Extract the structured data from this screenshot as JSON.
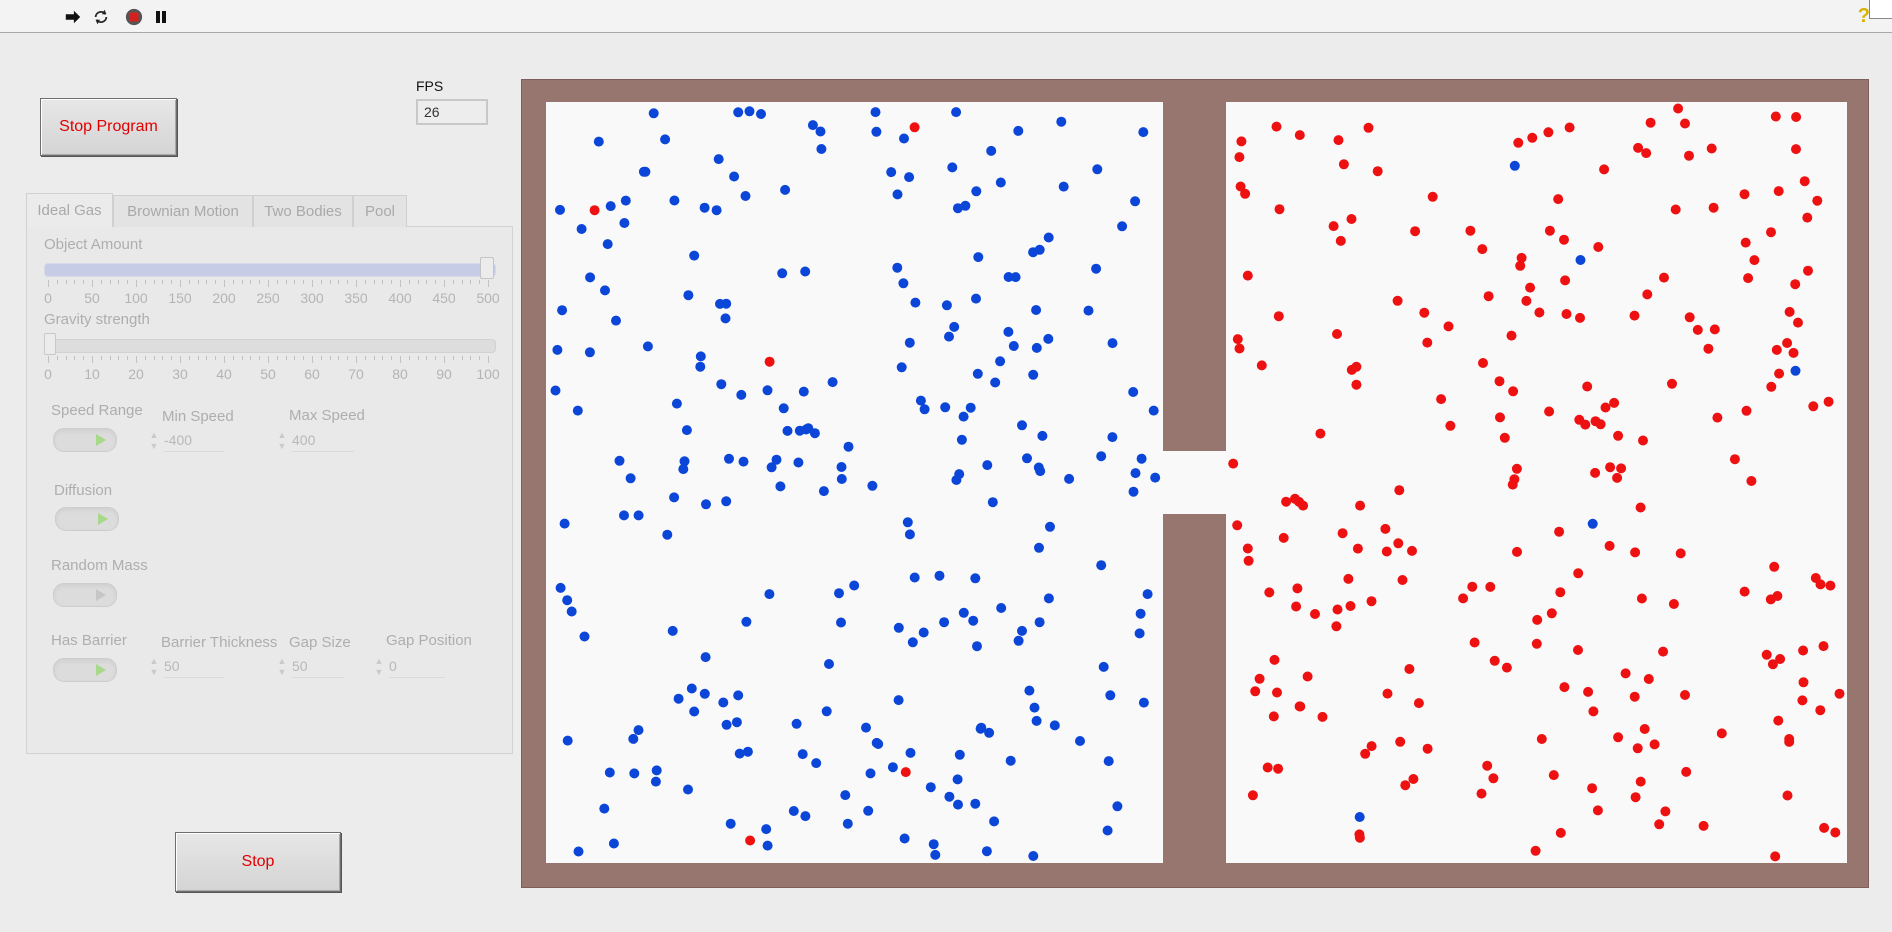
{
  "toolbar": {
    "icons": [
      "run-arrow-icon",
      "run-continuously-icon",
      "abort-icon",
      "pause-icon",
      "help-icon"
    ],
    "help_glyph": "?"
  },
  "buttons": {
    "stop_program": "Stop Program",
    "stop": "Stop"
  },
  "fps": {
    "label": "FPS",
    "value": "26"
  },
  "tabs": [
    {
      "label": "Ideal Gas",
      "active": true
    },
    {
      "label": "Brownian Motion",
      "active": false
    },
    {
      "label": "Two Bodies",
      "active": false
    },
    {
      "label": "Pool",
      "active": false
    }
  ],
  "ideal_gas": {
    "object_amount": {
      "label": "Object Amount",
      "value_fraction": 1.0,
      "ticks": [
        "0",
        "50",
        "100",
        "150",
        "200",
        "250",
        "300",
        "350",
        "400",
        "450",
        "500"
      ]
    },
    "gravity": {
      "label": "Gravity strength",
      "value_fraction": 0.0,
      "ticks": [
        "0",
        "10",
        "20",
        "30",
        "40",
        "50",
        "60",
        "70",
        "80",
        "90",
        "100"
      ]
    },
    "speed_range": {
      "label": "Speed Range",
      "on": true
    },
    "min_speed": {
      "label": "Min Speed",
      "value": "-400"
    },
    "max_speed": {
      "label": "Max Speed",
      "value": "400"
    },
    "diffusion": {
      "label": "Diffusion",
      "on": true
    },
    "random_mass": {
      "label": "Random Mass",
      "on": false
    },
    "has_barrier": {
      "label": "Has Barrier",
      "on": true
    },
    "barrier_thickness": {
      "label": "Barrier Thickness",
      "value": "50"
    },
    "gap_size": {
      "label": "Gap Size",
      "value": "50"
    },
    "gap_position": {
      "label": "Gap Position",
      "value": "0"
    }
  },
  "simulation": {
    "colors": {
      "frame": "#987670",
      "chamber": "#f9f9f9",
      "blue": "#0b46d8",
      "red": "#ee1111"
    },
    "particle_counts": {
      "left_blue": 250,
      "left_red": 5,
      "right_red": 240,
      "right_blue": 5
    }
  }
}
